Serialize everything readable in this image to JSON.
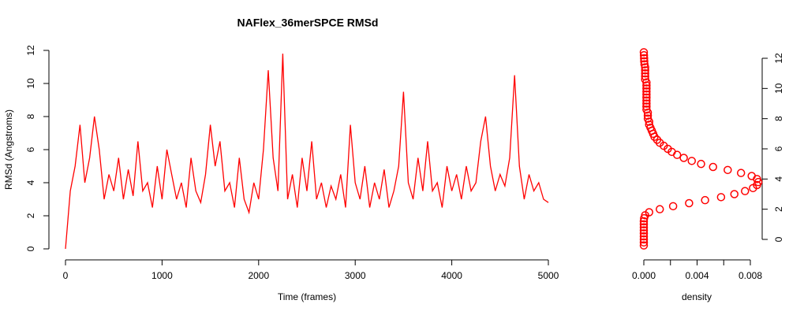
{
  "chart_data": [
    {
      "type": "line",
      "title": "NAFlex_36merSPCE RMSd",
      "x_label": "Time (frames)",
      "y_label": "RMSd (Angstroms)",
      "color": "red",
      "x": [
        0,
        50,
        100,
        150,
        200,
        250,
        300,
        350,
        400,
        450,
        500,
        550,
        600,
        650,
        700,
        750,
        800,
        850,
        900,
        950,
        1000,
        1050,
        1100,
        1150,
        1200,
        1250,
        1300,
        1350,
        1400,
        1450,
        1500,
        1550,
        1600,
        1650,
        1700,
        1750,
        1800,
        1850,
        1900,
        1950,
        2000,
        2050,
        2100,
        2150,
        2200,
        2250,
        2300,
        2350,
        2400,
        2450,
        2500,
        2550,
        2600,
        2650,
        2700,
        2750,
        2800,
        2850,
        2900,
        2950,
        3000,
        3050,
        3100,
        3150,
        3200,
        3250,
        3300,
        3350,
        3400,
        3450,
        3500,
        3550,
        3600,
        3650,
        3700,
        3750,
        3800,
        3850,
        3900,
        3950,
        4000,
        4050,
        4100,
        4150,
        4200,
        4250,
        4300,
        4350,
        4400,
        4450,
        4500,
        4550,
        4600,
        4650,
        4700,
        4750,
        4800,
        4850,
        4900,
        4950,
        5000
      ],
      "values": [
        0,
        3.5,
        5.0,
        7.5,
        4.0,
        5.5,
        8.0,
        6.0,
        3.0,
        4.5,
        3.5,
        5.5,
        3.0,
        4.8,
        3.2,
        6.5,
        3.5,
        4.0,
        2.5,
        5.0,
        3.0,
        6.0,
        4.5,
        3.0,
        4.0,
        2.5,
        5.5,
        3.5,
        2.8,
        4.5,
        7.5,
        5.0,
        6.5,
        3.5,
        4.0,
        2.5,
        5.5,
        3.0,
        2.2,
        4.0,
        3.0,
        6.0,
        10.8,
        5.5,
        3.5,
        11.8,
        3.0,
        4.5,
        2.5,
        5.5,
        3.5,
        6.5,
        3.0,
        4.0,
        2.5,
        3.8,
        3.0,
        4.5,
        2.5,
        7.5,
        4.0,
        3.0,
        5.0,
        2.5,
        4.0,
        3.0,
        4.8,
        2.5,
        3.5,
        5.0,
        9.5,
        4.0,
        3.0,
        5.5,
        3.5,
        6.5,
        3.5,
        4.0,
        2.5,
        5.0,
        3.5,
        4.5,
        3.0,
        5.0,
        3.5,
        4.0,
        6.5,
        8.0,
        5.0,
        3.5,
        4.5,
        3.8,
        5.5,
        10.5,
        5.0,
        3.0,
        4.5,
        3.5,
        4.0,
        3.0,
        2.8
      ],
      "xlim": [
        0,
        5000
      ],
      "xticks": [
        0,
        1000,
        2000,
        3000,
        4000,
        5000
      ],
      "ylim": [
        0,
        12
      ],
      "yticks": [
        0,
        2,
        4,
        6,
        8,
        10,
        12
      ]
    },
    {
      "type": "scatter",
      "x_label": "density",
      "color": "red",
      "x": [
        0,
        0,
        0,
        0,
        0,
        0,
        0,
        0,
        0,
        2e-05,
        0.0001,
        0.0004,
        0.0012,
        0.0022,
        0.0034,
        0.0046,
        0.0058,
        0.0068,
        0.0076,
        0.0082,
        0.0085,
        0.0086,
        0.0085,
        0.0081,
        0.0073,
        0.0063,
        0.0052,
        0.0043,
        0.0036,
        0.003,
        0.0025,
        0.0021,
        0.0018,
        0.0015,
        0.0012,
        0.001,
        0.0008,
        0.0007,
        0.0006,
        0.0005,
        0.0004,
        0.0004,
        0.0003,
        0.0003,
        0.0003,
        0.0002,
        0.0002,
        0.0002,
        0.0002,
        0.0002,
        0.0002,
        0.0002,
        0.0002,
        0.0002,
        0.0002,
        0.0001,
        0.0001,
        0.0001,
        0.0001,
        0.0001,
        5e-05,
        3e-05,
        2e-05,
        1e-05,
        0
      ],
      "values": [
        -0.4,
        -0.2,
        0,
        0.2,
        0.4,
        0.6,
        0.8,
        1.0,
        1.2,
        1.4,
        1.6,
        1.8,
        2.0,
        2.2,
        2.4,
        2.6,
        2.8,
        3.0,
        3.2,
        3.4,
        3.6,
        3.8,
        4.0,
        4.2,
        4.4,
        4.6,
        4.8,
        5.0,
        5.2,
        5.4,
        5.6,
        5.8,
        6.0,
        6.2,
        6.4,
        6.6,
        6.8,
        7.0,
        7.2,
        7.4,
        7.6,
        7.8,
        8.0,
        8.2,
        8.4,
        8.6,
        8.8,
        9.0,
        9.2,
        9.4,
        9.6,
        9.8,
        10.0,
        10.2,
        10.4,
        10.6,
        10.8,
        11.0,
        11.2,
        11.4,
        11.6,
        11.8,
        12.0,
        12.2,
        12.4
      ],
      "xlim": [
        0,
        0.008
      ],
      "xticks": [
        {
          "value": 0,
          "label": "0.000"
        },
        {
          "value": 0.002,
          "label": null
        },
        {
          "value": 0.004,
          "label": "0.004"
        },
        {
          "value": 0.006,
          "label": null
        },
        {
          "value": 0.008,
          "label": "0.008"
        }
      ],
      "ylim": [
        0,
        12
      ],
      "yticks": [
        0,
        2,
        4,
        6,
        8,
        10,
        12
      ]
    }
  ]
}
